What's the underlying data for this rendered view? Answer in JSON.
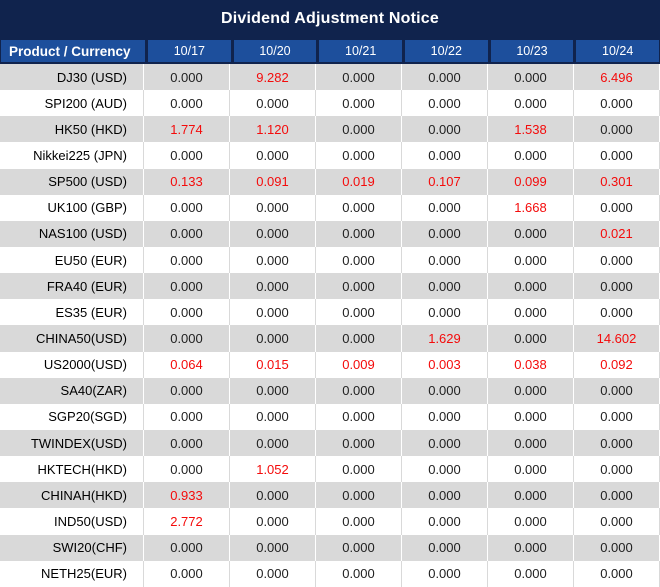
{
  "title": "Dividend Adjustment Notice",
  "colors": {
    "title_bar_bg": "#10234d",
    "header_bg": "#1d4f9c",
    "stripe_gray": "#d9d9d9",
    "row_white": "#ffffff",
    "value_highlight_red": "#f40b0b",
    "text_black": "#1f1f1f"
  },
  "table": {
    "product_header": "Product / Currency",
    "date_headers": [
      "10/17",
      "10/20",
      "10/21",
      "10/22",
      "10/23",
      "10/24"
    ],
    "rows": [
      {
        "product": "DJ30 (USD)",
        "values": [
          "0.000",
          "9.282",
          "0.000",
          "0.000",
          "0.000",
          "6.496"
        ],
        "red": [
          false,
          true,
          false,
          false,
          false,
          true
        ]
      },
      {
        "product": "SPI200 (AUD)",
        "values": [
          "0.000",
          "0.000",
          "0.000",
          "0.000",
          "0.000",
          "0.000"
        ],
        "red": [
          false,
          false,
          false,
          false,
          false,
          false
        ]
      },
      {
        "product": "HK50 (HKD)",
        "values": [
          "1.774",
          "1.120",
          "0.000",
          "0.000",
          "1.538",
          "0.000"
        ],
        "red": [
          true,
          true,
          false,
          false,
          true,
          false
        ]
      },
      {
        "product": "Nikkei225 (JPN)",
        "values": [
          "0.000",
          "0.000",
          "0.000",
          "0.000",
          "0.000",
          "0.000"
        ],
        "red": [
          false,
          false,
          false,
          false,
          false,
          false
        ]
      },
      {
        "product": "SP500 (USD)",
        "values": [
          "0.133",
          "0.091",
          "0.019",
          "0.107",
          "0.099",
          "0.301"
        ],
        "red": [
          true,
          true,
          true,
          true,
          true,
          true
        ]
      },
      {
        "product": "UK100 (GBP)",
        "values": [
          "0.000",
          "0.000",
          "0.000",
          "0.000",
          "1.668",
          "0.000"
        ],
        "red": [
          false,
          false,
          false,
          false,
          true,
          false
        ]
      },
      {
        "product": "NAS100 (USD)",
        "values": [
          "0.000",
          "0.000",
          "0.000",
          "0.000",
          "0.000",
          "0.021"
        ],
        "red": [
          false,
          false,
          false,
          false,
          false,
          true
        ]
      },
      {
        "product": "EU50 (EUR)",
        "values": [
          "0.000",
          "0.000",
          "0.000",
          "0.000",
          "0.000",
          "0.000"
        ],
        "red": [
          false,
          false,
          false,
          false,
          false,
          false
        ]
      },
      {
        "product": "FRA40 (EUR)",
        "values": [
          "0.000",
          "0.000",
          "0.000",
          "0.000",
          "0.000",
          "0.000"
        ],
        "red": [
          false,
          false,
          false,
          false,
          false,
          false
        ]
      },
      {
        "product": "ES35 (EUR)",
        "values": [
          "0.000",
          "0.000",
          "0.000",
          "0.000",
          "0.000",
          "0.000"
        ],
        "red": [
          false,
          false,
          false,
          false,
          false,
          false
        ]
      },
      {
        "product": "CHINA50(USD)",
        "values": [
          "0.000",
          "0.000",
          "0.000",
          "1.629",
          "0.000",
          "14.602"
        ],
        "red": [
          false,
          false,
          false,
          true,
          false,
          true
        ]
      },
      {
        "product": "US2000(USD)",
        "values": [
          "0.064",
          "0.015",
          "0.009",
          "0.003",
          "0.038",
          "0.092"
        ],
        "red": [
          true,
          true,
          true,
          true,
          true,
          true
        ]
      },
      {
        "product": "SA40(ZAR)",
        "values": [
          "0.000",
          "0.000",
          "0.000",
          "0.000",
          "0.000",
          "0.000"
        ],
        "red": [
          false,
          false,
          false,
          false,
          false,
          false
        ]
      },
      {
        "product": "SGP20(SGD)",
        "values": [
          "0.000",
          "0.000",
          "0.000",
          "0.000",
          "0.000",
          "0.000"
        ],
        "red": [
          false,
          false,
          false,
          false,
          false,
          false
        ]
      },
      {
        "product": "TWINDEX(USD)",
        "values": [
          "0.000",
          "0.000",
          "0.000",
          "0.000",
          "0.000",
          "0.000"
        ],
        "red": [
          false,
          false,
          false,
          false,
          false,
          false
        ]
      },
      {
        "product": "HKTECH(HKD)",
        "values": [
          "0.000",
          "1.052",
          "0.000",
          "0.000",
          "0.000",
          "0.000"
        ],
        "red": [
          false,
          true,
          false,
          false,
          false,
          false
        ]
      },
      {
        "product": "CHINAH(HKD)",
        "values": [
          "0.933",
          "0.000",
          "0.000",
          "0.000",
          "0.000",
          "0.000"
        ],
        "red": [
          true,
          false,
          false,
          false,
          false,
          false
        ]
      },
      {
        "product": "IND50(USD)",
        "values": [
          "2.772",
          "0.000",
          "0.000",
          "0.000",
          "0.000",
          "0.000"
        ],
        "red": [
          true,
          false,
          false,
          false,
          false,
          false
        ]
      },
      {
        "product": "SWI20(CHF)",
        "values": [
          "0.000",
          "0.000",
          "0.000",
          "0.000",
          "0.000",
          "0.000"
        ],
        "red": [
          false,
          false,
          false,
          false,
          false,
          false
        ]
      },
      {
        "product": "NETH25(EUR)",
        "values": [
          "0.000",
          "0.000",
          "0.000",
          "0.000",
          "0.000",
          "0.000"
        ],
        "red": [
          false,
          false,
          false,
          false,
          false,
          false
        ]
      }
    ]
  }
}
